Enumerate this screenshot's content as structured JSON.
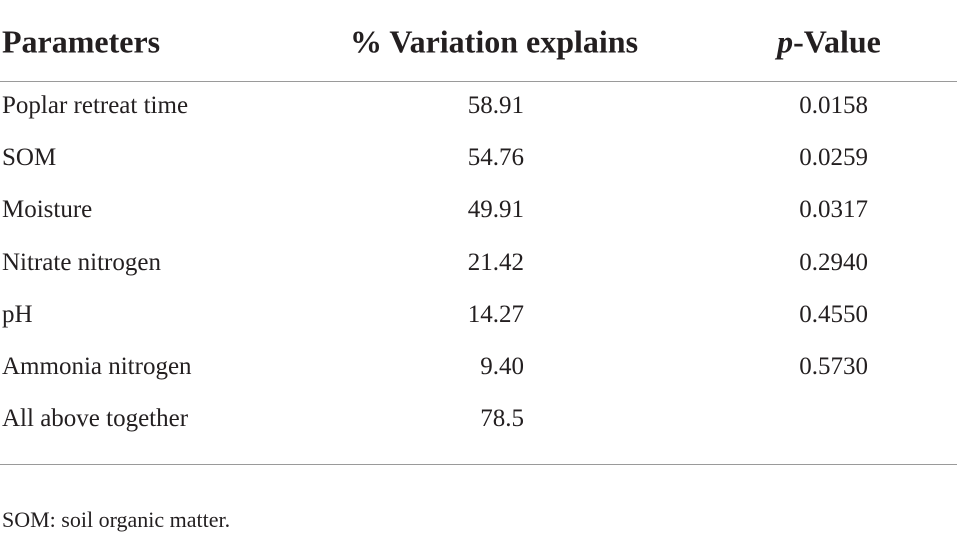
{
  "table": {
    "header": [
      "Parameters",
      "% Variation explains",
      [
        "p",
        "-Value"
      ]
    ],
    "rows": [
      [
        "Poplar retreat time",
        "58.91",
        "0.0158"
      ],
      [
        "SOM",
        "54.76",
        "0.0259"
      ],
      [
        "Moisture",
        "49.91",
        "0.0317"
      ],
      [
        "Nitrate nitrogen",
        "21.42",
        "0.2940"
      ],
      [
        "pH",
        "14.27",
        "0.4550"
      ],
      [
        "Ammonia nitrogen",
        "9.40",
        "0.5730"
      ],
      [
        "All above together",
        "78.5"
      ]
    ]
  },
  "footnote": "SOM: soil organic matter."
}
